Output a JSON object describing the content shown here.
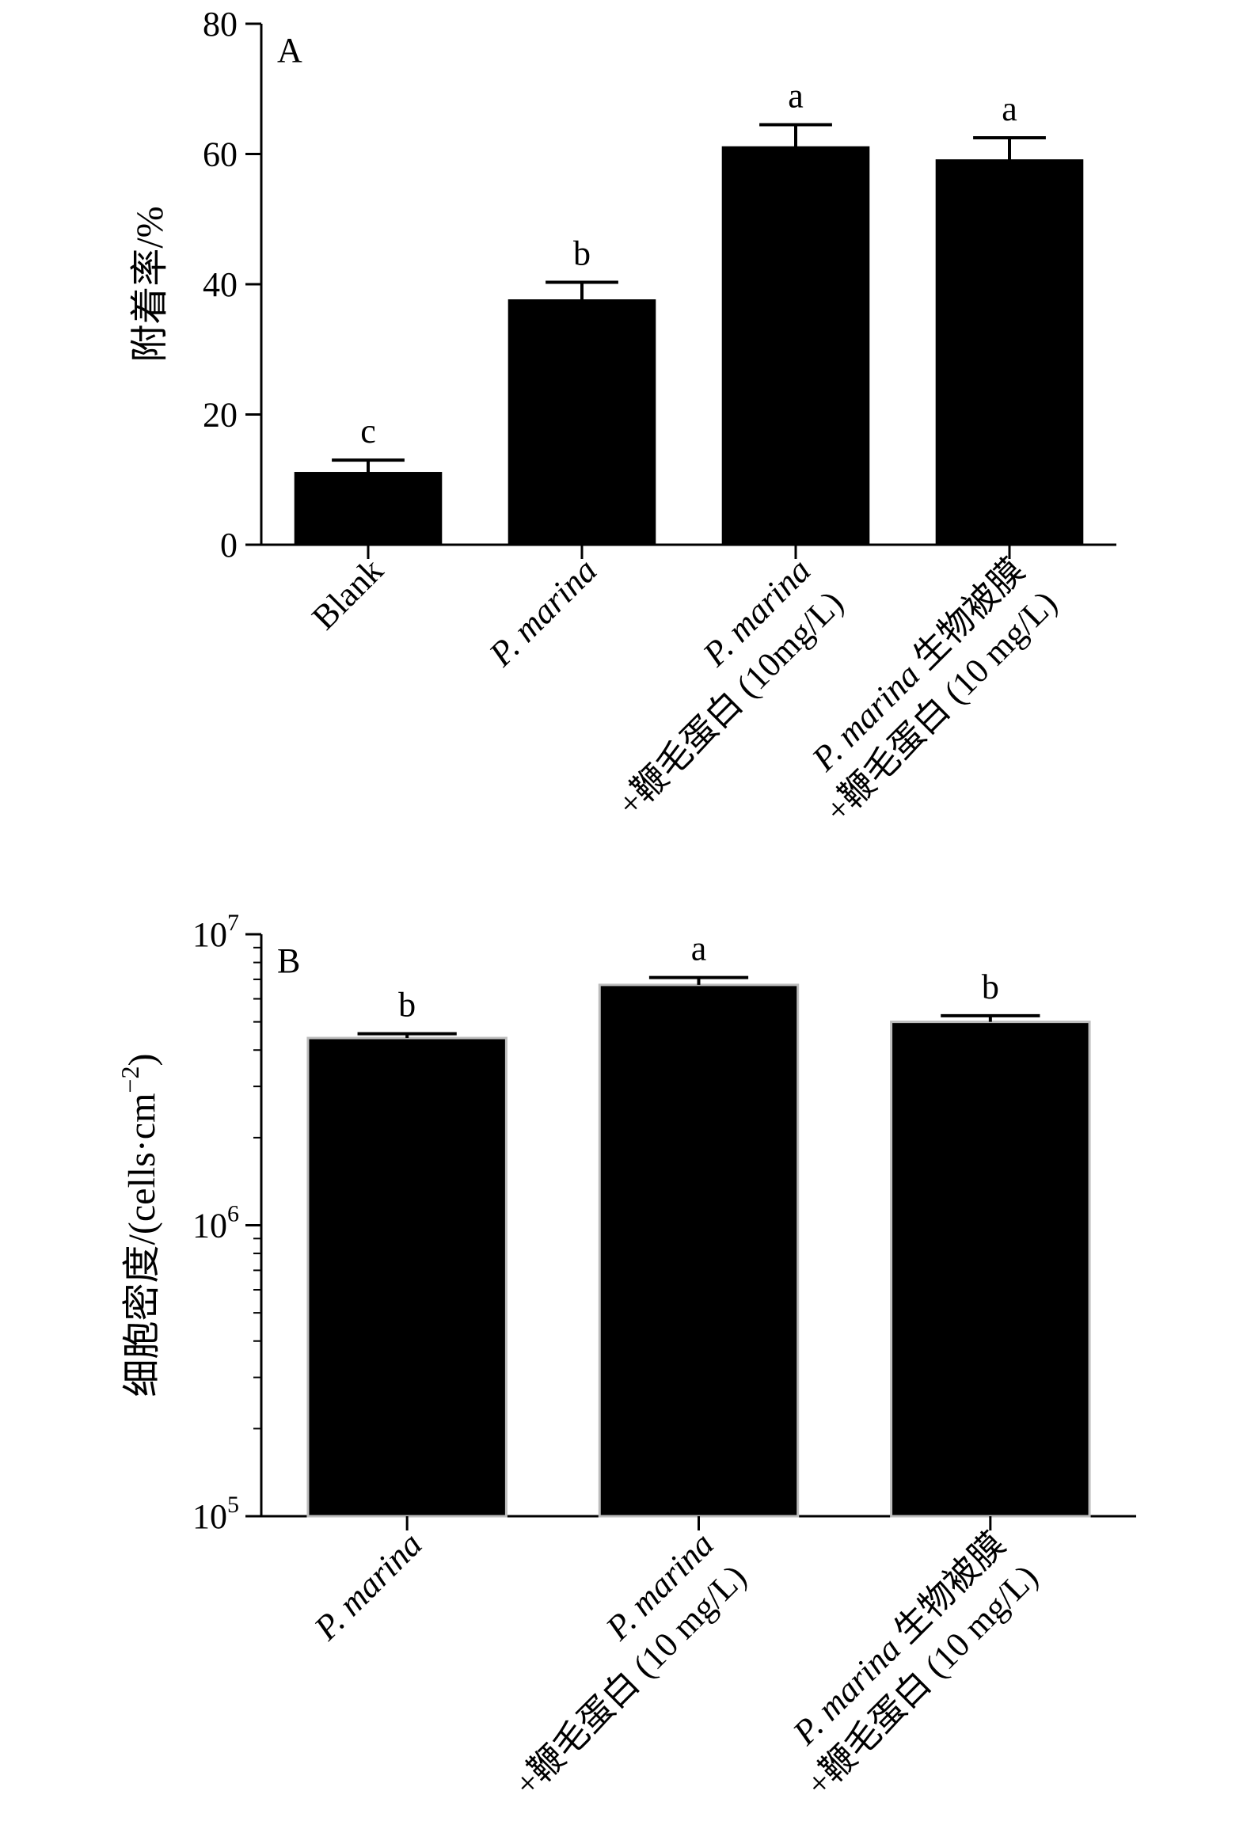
{
  "chart_data": [
    {
      "type": "bar",
      "panel_label": "A",
      "ylabel": "附着率/%",
      "ylim": [
        0,
        80
      ],
      "yticks": [
        "0",
        "20",
        "40",
        "60",
        "80"
      ],
      "categories": [
        {
          "lines": [
            [
              {
                "t": "Blank"
              }
            ]
          ]
        },
        {
          "lines": [
            [
              {
                "t": "P. marina",
                "i": true
              }
            ]
          ]
        },
        {
          "lines": [
            [
              {
                "t": "P. marina",
                "i": true
              }
            ],
            [
              {
                "t": "+鞭毛蛋白 (10mg/L)"
              }
            ]
          ]
        },
        {
          "lines": [
            [
              {
                "t": "P. marina",
                "i": true
              },
              {
                "t": " 生物被膜"
              }
            ],
            [
              {
                "t": "+鞭毛蛋白 (10 mg/L)"
              }
            ]
          ]
        }
      ],
      "values": [
        11,
        37.5,
        61,
        59
      ],
      "errors": [
        2,
        2.8,
        3.5,
        3.5
      ],
      "significance": [
        "c",
        "b",
        "a",
        "a"
      ],
      "grid": false,
      "legend": "none"
    },
    {
      "type": "bar",
      "panel_label": "B",
      "yscale": "log",
      "ylabel_parts": [
        {
          "t": "细胞密度/(cells·cm"
        },
        {
          "t": "−2",
          "sup": true
        },
        {
          "t": ")"
        }
      ],
      "ylim": [
        100000,
        10000000
      ],
      "yticks": [
        {
          "base": "10",
          "exp": "5"
        },
        {
          "base": "10",
          "exp": "6"
        },
        {
          "base": "10",
          "exp": "7"
        }
      ],
      "categories": [
        {
          "lines": [
            [
              {
                "t": "P. marina",
                "i": true
              }
            ]
          ]
        },
        {
          "lines": [
            [
              {
                "t": "P. marina",
                "i": true
              }
            ],
            [
              {
                "t": "+鞭毛蛋白 (10 mg/L)"
              }
            ]
          ]
        },
        {
          "lines": [
            [
              {
                "t": "P. marina",
                "i": true
              },
              {
                "t": " 生物被膜"
              }
            ],
            [
              {
                "t": "+鞭毛蛋白 (10 mg/L)"
              }
            ]
          ]
        }
      ],
      "values": [
        4400000,
        6700000,
        5000000
      ],
      "errors": [
        150000,
        400000,
        250000
      ],
      "significance": [
        "b",
        "a",
        "b"
      ],
      "grid": false,
      "legend": "none"
    }
  ]
}
